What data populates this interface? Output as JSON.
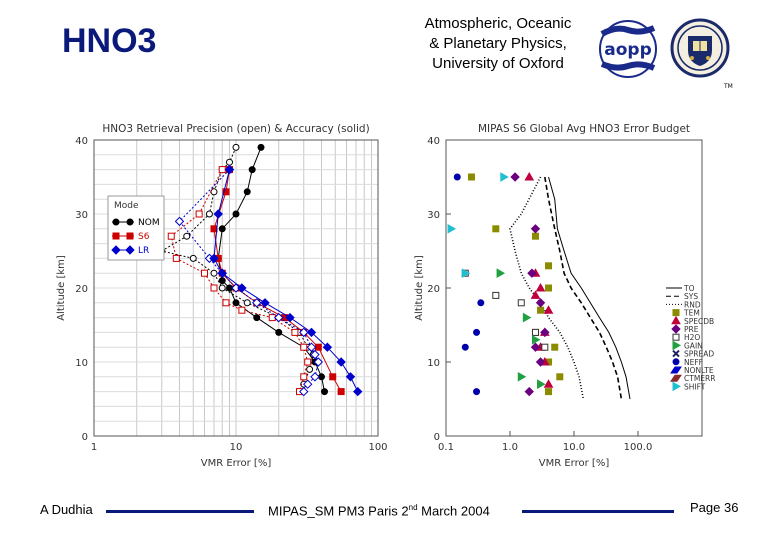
{
  "slide": {
    "title": "HNO3",
    "header_lines": [
      "Atmospheric, Oceanic",
      "& Planetary Physics,",
      "University of Oxford"
    ],
    "logo_text": "aopp",
    "crest_mark": "TM",
    "footer": {
      "author": "A Dudhia",
      "center_prefix": "MIPAS_SM PM3 Paris 2",
      "center_sup": "nd",
      "center_suffix": " March 2004",
      "page": "Page 36"
    },
    "colors": {
      "title": "#0a1a7a",
      "rule": "#0a1a7a",
      "logo_blue": "#1a2a8a"
    }
  },
  "chart_data": [
    {
      "type": "line",
      "title": "HNO3 Retrieval Precision (open) & Accuracy (solid)",
      "xlabel": "VMR Error [%]",
      "ylabel": "Altitude [km]",
      "xscale": "log",
      "xlim": [
        1,
        100
      ],
      "ylim": [
        0,
        40
      ],
      "xticks": [
        "1",
        "10",
        "100"
      ],
      "yticks": [
        "0",
        "10",
        "20",
        "30",
        "40"
      ],
      "legend": {
        "title": "Mode",
        "entries": [
          "NOM",
          "S6",
          "LR"
        ],
        "placement": "top-left"
      },
      "series": [
        {
          "name": "NOM precision",
          "mode": "NOM",
          "marker": "open",
          "color": "#000000",
          "x": [
            10,
            9,
            8,
            7,
            6.5,
            4.5,
            3,
            5,
            7,
            8,
            12,
            20,
            28,
            32,
            35,
            33,
            30
          ],
          "y": [
            39,
            37,
            36,
            33,
            30,
            27,
            25,
            24,
            22,
            20,
            18,
            16,
            14,
            12,
            11,
            9,
            7
          ]
        },
        {
          "name": "NOM accuracy",
          "mode": "NOM",
          "marker": "solid",
          "color": "#000000",
          "x": [
            15,
            13,
            12,
            10,
            8,
            7.5,
            8,
            9,
            10,
            14,
            20,
            30,
            36,
            40,
            42
          ],
          "y": [
            39,
            36,
            33,
            30,
            28,
            24,
            21,
            20,
            18,
            16,
            14,
            12,
            10,
            8,
            6
          ]
        },
        {
          "name": "S6 precision",
          "mode": "S6",
          "marker": "open",
          "color": "#cc0000",
          "x": [
            8,
            5.5,
            3.5,
            3.8,
            6,
            7,
            8.5,
            11,
            18,
            26,
            30,
            32,
            30,
            28
          ],
          "y": [
            36,
            30,
            27,
            24,
            22,
            20,
            18,
            17,
            16,
            14,
            12,
            10,
            8,
            6
          ]
        },
        {
          "name": "S6 accuracy",
          "mode": "S6",
          "marker": "solid",
          "color": "#cc0000",
          "x": [
            9,
            8.5,
            7,
            7.5,
            8,
            10,
            14,
            22,
            30,
            38,
            48,
            55
          ],
          "y": [
            36,
            33,
            28,
            24,
            22,
            20,
            18,
            16,
            14,
            12,
            8,
            6
          ]
        },
        {
          "name": "LR precision",
          "mode": "LR",
          "marker": "open",
          "color": "#0000cc",
          "x": [
            9,
            4,
            6.5,
            8,
            10,
            14,
            20,
            30,
            34,
            36,
            38,
            36,
            32,
            30
          ],
          "y": [
            36,
            29,
            24,
            22,
            20,
            18,
            16,
            14,
            12,
            11,
            10,
            8,
            7,
            6
          ]
        },
        {
          "name": "LR accuracy",
          "mode": "LR",
          "marker": "solid",
          "color": "#0000cc",
          "x": [
            9,
            7.5,
            7,
            8,
            11,
            16,
            24,
            34,
            44,
            55,
            64,
            72
          ],
          "y": [
            36,
            30,
            24,
            22,
            20,
            18,
            16,
            14,
            12,
            10,
            8,
            6
          ]
        }
      ]
    },
    {
      "type": "scatter",
      "title": "MIPAS S6 Global Avg HNO3 Error Budget",
      "xlabel": "VMR Error [%]",
      "ylabel": "Altitude [km]",
      "xscale": "log",
      "xlim": [
        0.1,
        1000
      ],
      "ylim": [
        0,
        40
      ],
      "xticks": [
        "0.1",
        "1.0",
        "10.0",
        "100.0"
      ],
      "yticks": [
        "0",
        "10",
        "20",
        "30",
        "40"
      ],
      "legend_entries": [
        "TO",
        "SYS",
        "RND",
        "TEM",
        "SPECDB",
        "PRE",
        "H2O",
        "GAIN",
        "SPREAD",
        "NEFF",
        "NONLTE",
        "CTMERR",
        "SHIFT"
      ],
      "lines": [
        {
          "name": "TO",
          "style": "solid",
          "x": [
            4,
            5,
            5.5,
            7,
            9,
            13,
            18,
            25,
            35,
            45,
            55,
            65,
            75
          ],
          "y": [
            35,
            32,
            28,
            25,
            22,
            20,
            18,
            16,
            14,
            12,
            10,
            8,
            5
          ]
        },
        {
          "name": "SYS",
          "style": "dashed",
          "x": [
            3.5,
            4,
            5,
            6,
            7,
            9,
            13,
            18,
            25,
            32,
            40,
            48,
            55
          ],
          "y": [
            35,
            32,
            28,
            25,
            22,
            20,
            18,
            16,
            14,
            12,
            10,
            8,
            5
          ]
        },
        {
          "name": "RND",
          "style": "dotted",
          "x": [
            3,
            1.5,
            1,
            1.2,
            1.5,
            2,
            3,
            4,
            6,
            8,
            10,
            12,
            14
          ],
          "y": [
            35,
            30,
            28,
            25,
            22,
            20,
            18,
            16,
            14,
            12,
            10,
            8,
            5
          ]
        }
      ],
      "points": [
        {
          "name": "TEM",
          "x": [
            0.25,
            0.6,
            2.5,
            4,
            4,
            3,
            2.5,
            5,
            4,
            6,
            4
          ],
          "y": [
            35,
            28,
            27,
            23,
            20,
            17,
            14,
            12,
            10,
            8,
            6
          ]
        },
        {
          "name": "SPECDB",
          "x": [
            2,
            2.5,
            3,
            2.5,
            4,
            3.5,
            3,
            3.5,
            4
          ],
          "y": [
            35,
            22,
            20,
            19,
            17,
            14,
            12,
            10,
            7
          ]
        },
        {
          "name": "PRE",
          "x": [
            1.2,
            2.5,
            2.2,
            3,
            3.5,
            2.5,
            3,
            2
          ],
          "y": [
            35,
            28,
            22,
            18,
            14,
            12,
            10,
            6
          ]
        },
        {
          "name": "H2O",
          "x": [
            0.2,
            0.6,
            1.5,
            2.5,
            3.5
          ],
          "y": [
            22,
            19,
            18,
            14,
            12
          ]
        },
        {
          "name": "GAIN",
          "x": [
            0.7,
            1.8,
            2.5,
            1.5,
            3
          ],
          "y": [
            22,
            16,
            13,
            8,
            7
          ]
        },
        {
          "name": "NEFF",
          "x": [
            0.15,
            0.35,
            0.3,
            0.2,
            0.3
          ],
          "y": [
            35,
            18,
            14,
            12,
            6
          ]
        },
        {
          "name": "SHIFT",
          "x": [
            0.12,
            0.8,
            0.2
          ],
          "y": [
            28,
            35,
            22
          ]
        }
      ]
    }
  ]
}
